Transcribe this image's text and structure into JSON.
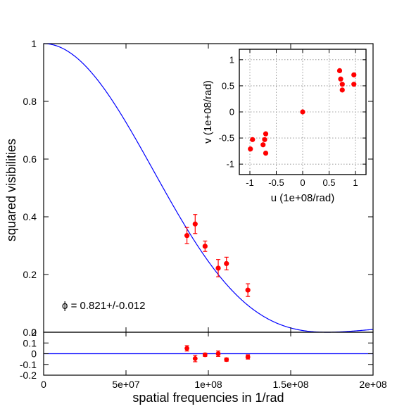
{
  "chart_data": [
    {
      "type": "scatter",
      "xlabel": "spatial frequencies in 1/rad",
      "ylabel": "squared visibilities",
      "xlim": [
        0,
        200000000
      ],
      "ylim": [
        0,
        1
      ],
      "xticks": [
        "0",
        "5e+07",
        "1e+08",
        "1.5e+08",
        "2e+08"
      ],
      "xtick_values": [
        0,
        50000000,
        100000000,
        150000000,
        200000000
      ],
      "yticks": [
        "0",
        "0.2",
        "0.4",
        "0.6",
        "0.8",
        "1"
      ],
      "ytick_values": [
        0,
        0.2,
        0.4,
        0.6,
        0.8,
        1.0
      ],
      "annotation": "ϕ = 0.821+/-0.012",
      "model_diameter": 0.821,
      "line_color": "#0000ff",
      "point_color": "#ff0000",
      "points": [
        {
          "x": 87000000,
          "y": 0.335,
          "err": 0.028
        },
        {
          "x": 92000000,
          "y": 0.375,
          "err": 0.033
        },
        {
          "x": 98000000,
          "y": 0.298,
          "err": 0.018
        },
        {
          "x": 106000000,
          "y": 0.222,
          "err": 0.03
        },
        {
          "x": 111000000,
          "y": 0.238,
          "err": 0.022
        },
        {
          "x": 124000000,
          "y": 0.146,
          "err": 0.022
        }
      ]
    },
    {
      "type": "scatter",
      "xlim": [
        0,
        200000000
      ],
      "ylim": [
        -0.2,
        0.2
      ],
      "yticks": [
        "0.2",
        "0.1",
        "0",
        "-0.1",
        "-0.2"
      ],
      "ytick_values": [
        0.2,
        0.1,
        0,
        -0.1,
        -0.2
      ],
      "points": [
        {
          "x": 87000000,
          "y": 0.05,
          "err": 0.025
        },
        {
          "x": 92000000,
          "y": -0.045,
          "err": 0.03
        },
        {
          "x": 98000000,
          "y": -0.01,
          "err": 0.015
        },
        {
          "x": 106000000,
          "y": 0.0,
          "err": 0.025
        },
        {
          "x": 111000000,
          "y": -0.055,
          "err": 0.015
        },
        {
          "x": 124000000,
          "y": -0.03,
          "err": 0.02
        }
      ]
    },
    {
      "type": "scatter",
      "xlabel": "u (1e+08/rad)",
      "ylabel": "v (1e+08/rad)",
      "xlim": [
        -1.2,
        1.2
      ],
      "ylim": [
        -1.2,
        1.2
      ],
      "xticks": [
        "-1",
        "-0.5",
        "0",
        "0.5",
        "1"
      ],
      "xtick_values": [
        -1,
        -0.5,
        0,
        0.5,
        1
      ],
      "yticks": [
        "1",
        "0.5",
        "0",
        "-0.5",
        "-1"
      ],
      "ytick_values": [
        1,
        0.5,
        0,
        -0.5,
        -1
      ],
      "grid": true,
      "points": [
        {
          "x": 0.0,
          "y": 0.0
        },
        {
          "x": 0.7,
          "y": 0.79
        },
        {
          "x": 0.72,
          "y": 0.63
        },
        {
          "x": 0.75,
          "y": 0.53
        },
        {
          "x": 0.75,
          "y": 0.42
        },
        {
          "x": 0.97,
          "y": 0.71
        },
        {
          "x": 0.97,
          "y": 0.53
        },
        {
          "x": -0.7,
          "y": -0.42
        },
        {
          "x": -0.72,
          "y": -0.53
        },
        {
          "x": -0.75,
          "y": -0.63
        },
        {
          "x": -0.7,
          "y": -0.79
        },
        {
          "x": -0.95,
          "y": -0.53
        },
        {
          "x": -0.99,
          "y": -0.71
        }
      ]
    }
  ]
}
